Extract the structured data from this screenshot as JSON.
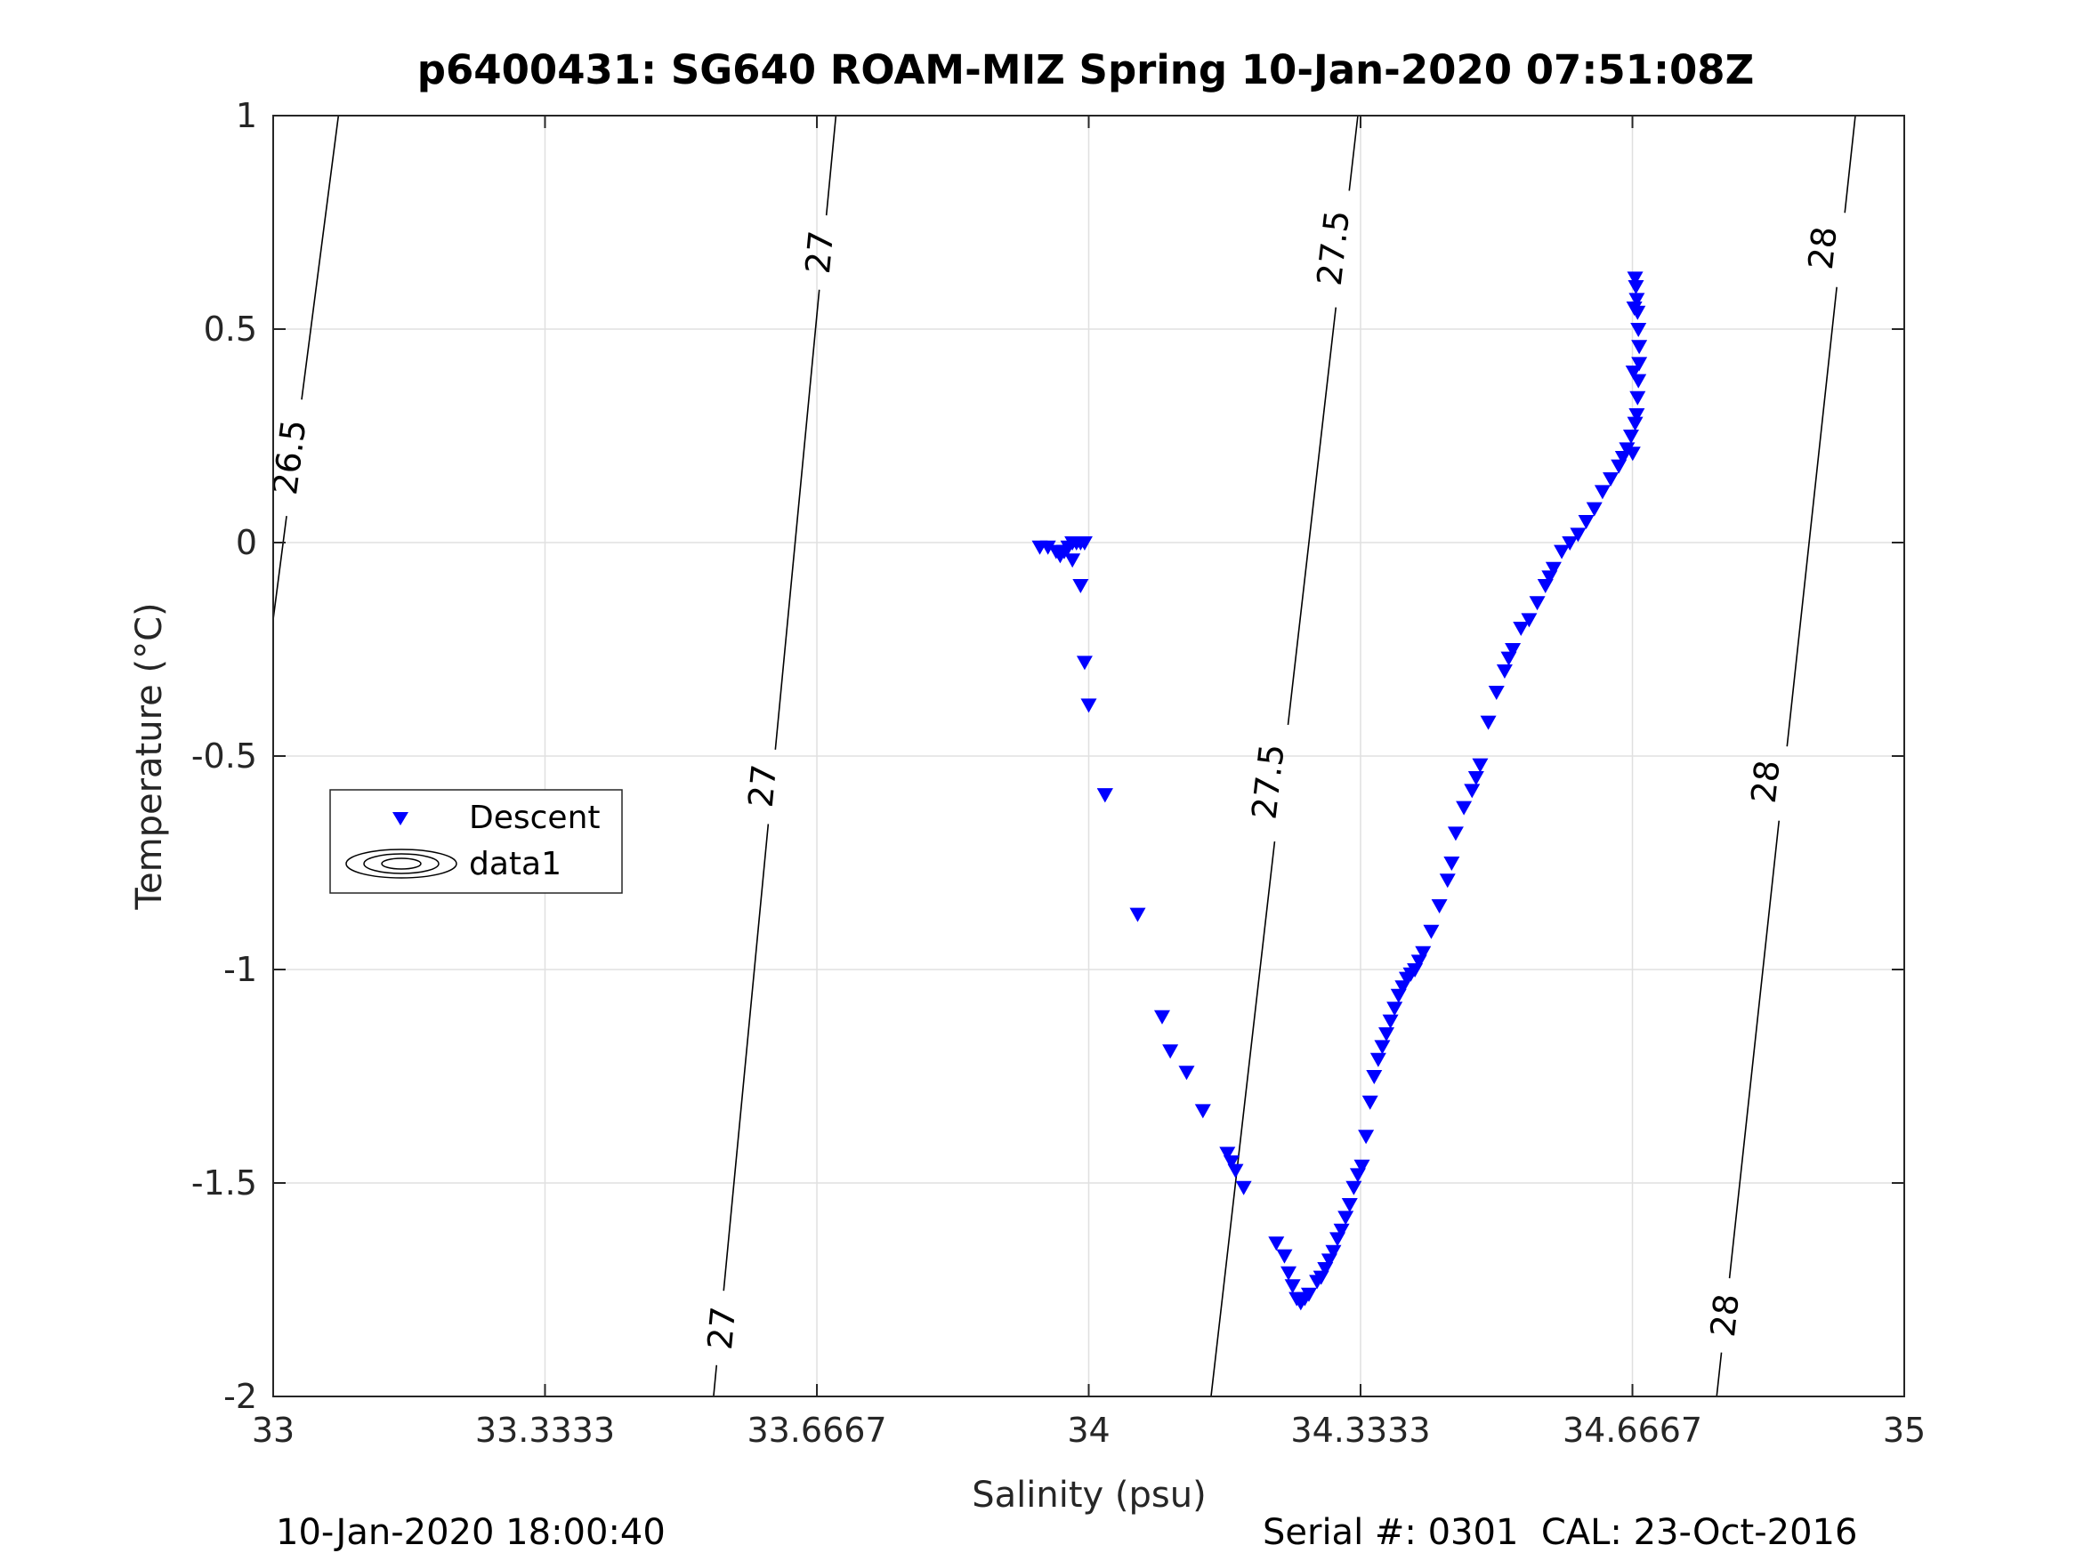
{
  "figure": {
    "title": "p6400431: SG640 ROAM-MIZ Spring 10-Jan-2020 07:51:08Z",
    "footer_left": "10-Jan-2020 18:00:40",
    "footer_right": "Serial #: 0301  CAL: 23-Oct-2016"
  },
  "chart_data": {
    "type": "scatter",
    "title": "p6400431: SG640 ROAM-MIZ Spring 10-Jan-2020 07:51:08Z",
    "xlabel": "Salinity (psu)",
    "ylabel": "Temperature (°C)",
    "xlim": [
      33,
      35
    ],
    "ylim": [
      -2,
      1
    ],
    "x_ticks": [
      33,
      33.3333,
      33.6667,
      34,
      34.3333,
      34.6667,
      35
    ],
    "x_tick_labels": [
      "33",
      "33.3333",
      "33.6667",
      "34",
      "34.3333",
      "34.6667",
      "35"
    ],
    "y_ticks": [
      -2,
      -1.5,
      -1,
      -0.5,
      0,
      0.5,
      1
    ],
    "y_tick_labels": [
      "-2",
      "-1.5",
      "-1",
      "-0.5",
      "0",
      "0.5",
      "1"
    ],
    "grid": true,
    "legend": {
      "placement": "left-middle",
      "entries": [
        "Descent",
        "data1"
      ]
    },
    "colors": {
      "descent": "#0000ff",
      "contour": "#000000",
      "grid": "#e0e0e0"
    },
    "contours": [
      {
        "level": "26.5",
        "line": [
          [
            33.0,
            -0.18
          ],
          [
            33.08,
            1.0
          ]
        ],
        "labels": [
          {
            "x": 33.02,
            "y": 0.2
          }
        ]
      },
      {
        "level": "27",
        "line": [
          [
            33.54,
            -2.0
          ],
          [
            33.69,
            1.0
          ]
        ],
        "labels": [
          {
            "x": 33.55,
            "y": -1.84
          },
          {
            "x": 33.6,
            "y": -0.57
          },
          {
            "x": 33.67,
            "y": 0.68
          }
        ]
      },
      {
        "level": "27.5",
        "line": [
          [
            34.15,
            -2.0
          ],
          [
            34.33,
            1.0
          ]
        ],
        "labels": [
          {
            "x": 34.22,
            "y": -0.56
          },
          {
            "x": 34.3,
            "y": 0.69
          }
        ]
      },
      {
        "level": "28",
        "line": [
          [
            34.77,
            -2.0
          ],
          [
            34.94,
            1.0
          ]
        ],
        "labels": [
          {
            "x": 34.78,
            "y": -1.81
          },
          {
            "x": 34.83,
            "y": -0.56
          },
          {
            "x": 34.9,
            "y": 0.69
          }
        ]
      }
    ],
    "series": [
      {
        "name": "Descent",
        "marker": "triangle-down",
        "x": [
          33.94,
          33.95,
          33.96,
          33.965,
          33.97,
          33.975,
          33.98,
          33.985,
          33.99,
          33.995,
          33.98,
          33.97,
          33.99,
          33.995,
          34.0,
          34.02,
          34.02,
          34.06,
          34.09,
          34.1,
          34.12,
          34.14,
          34.17,
          34.175,
          34.18,
          34.19,
          34.23,
          34.24,
          34.245,
          34.25,
          34.255,
          34.26,
          34.265,
          34.27,
          34.28,
          34.285,
          34.29,
          34.295,
          34.3,
          34.305,
          34.31,
          34.315,
          34.32,
          34.325,
          34.33,
          34.335,
          34.34,
          34.345,
          34.35,
          34.355,
          34.36,
          34.365,
          34.37,
          34.375,
          34.38,
          34.385,
          34.39,
          34.395,
          34.4,
          34.405,
          34.41,
          34.42,
          34.43,
          34.44,
          34.445,
          34.45,
          34.46,
          34.47,
          34.475,
          34.48,
          34.49,
          34.5,
          34.51,
          34.515,
          34.52,
          34.53,
          34.54,
          34.55,
          34.56,
          34.565,
          34.57,
          34.58,
          34.59,
          34.6,
          34.61,
          34.62,
          34.63,
          34.64,
          34.65,
          34.655,
          34.66,
          34.665,
          34.67,
          34.672,
          34.673,
          34.674,
          34.675,
          34.675,
          34.674,
          34.673,
          34.672,
          34.671,
          34.67,
          34.669,
          34.668,
          34.667
        ],
        "y": [
          -0.01,
          -0.01,
          -0.02,
          -0.03,
          -0.02,
          -0.01,
          0.0,
          0.0,
          0.0,
          0.0,
          -0.04,
          -0.02,
          -0.1,
          -0.28,
          -0.38,
          -0.59,
          -0.59,
          -0.87,
          -1.11,
          -1.19,
          -1.24,
          -1.33,
          -1.43,
          -1.45,
          -1.47,
          -1.51,
          -1.64,
          -1.67,
          -1.71,
          -1.74,
          -1.77,
          -1.78,
          -1.77,
          -1.76,
          -1.73,
          -1.72,
          -1.7,
          -1.68,
          -1.66,
          -1.63,
          -1.61,
          -1.58,
          -1.55,
          -1.51,
          -1.48,
          -1.46,
          -1.39,
          -1.31,
          -1.25,
          -1.21,
          -1.18,
          -1.15,
          -1.12,
          -1.09,
          -1.06,
          -1.04,
          -1.02,
          -1.01,
          -1.0,
          -0.98,
          -0.96,
          -0.91,
          -0.85,
          -0.79,
          -0.75,
          -0.68,
          -0.62,
          -0.58,
          -0.55,
          -0.52,
          -0.42,
          -0.35,
          -0.3,
          -0.27,
          -0.25,
          -0.2,
          -0.18,
          -0.14,
          -0.1,
          -0.08,
          -0.06,
          -0.02,
          0.0,
          0.02,
          0.05,
          0.08,
          0.12,
          0.15,
          0.18,
          0.2,
          0.22,
          0.25,
          0.28,
          0.3,
          0.34,
          0.38,
          0.42,
          0.46,
          0.5,
          0.54,
          0.57,
          0.6,
          0.62,
          0.55,
          0.4,
          0.21
        ]
      }
    ]
  }
}
